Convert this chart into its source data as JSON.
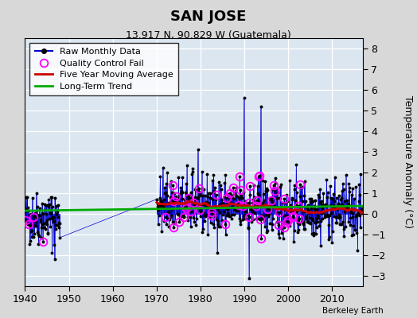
{
  "title": "SAN JOSE",
  "subtitle": "13.917 N, 90.829 W (Guatemala)",
  "ylabel": "Temperature Anomaly (°C)",
  "credit": "Berkeley Earth",
  "xlim": [
    1940,
    2017
  ],
  "ylim": [
    -3.5,
    8.5
  ],
  "yticks": [
    -3,
    -2,
    -1,
    0,
    1,
    2,
    3,
    4,
    5,
    6,
    7,
    8
  ],
  "xticks": [
    1940,
    1950,
    1960,
    1970,
    1980,
    1990,
    2000,
    2010
  ],
  "outer_bg": "#d8d8d8",
  "bg_color": "#dce6f1",
  "raw_color": "#0000cc",
  "ma_color": "#cc0000",
  "trend_color": "#00aa00",
  "qc_color": "#ff00ff",
  "seed": 42
}
